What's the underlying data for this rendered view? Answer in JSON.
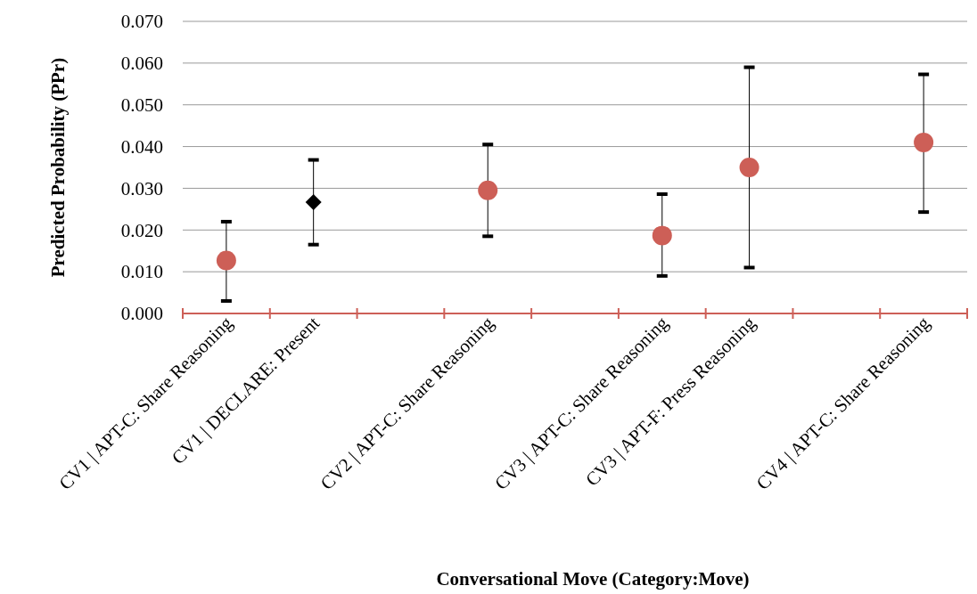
{
  "chart_data": {
    "type": "scatter",
    "xlabel": "Conversational Move (Category:Move)",
    "ylabel": "Predicted Probability (PPr)",
    "categories": [
      "CV1 | APT-C: Share Reasoning",
      "CV1 | DECLARE: Present",
      null,
      "CV2 | APT-C: Share Reasoning",
      null,
      "CV3 | APT-C: Share Reasoning",
      "CV3 | APT-F: Press Reasoning",
      null,
      "CV4 | APT-C: Share Reasoning"
    ],
    "series": [
      {
        "color": "#cd5f57",
        "marker": "circle",
        "values": [
          0.0127,
          null,
          null,
          0.0295,
          null,
          0.0187,
          0.035,
          null,
          0.041
        ],
        "errors": [
          [
            0.003,
            0.022
          ],
          null,
          null,
          [
            0.0185,
            0.0405
          ],
          null,
          [
            0.009,
            0.0286
          ],
          [
            0.011,
            0.059
          ],
          null,
          [
            0.0243,
            0.0573
          ]
        ]
      },
      {
        "color": "#000000",
        "marker": "diamond",
        "values": [
          null,
          0.0267,
          null,
          null,
          null,
          null,
          null,
          null,
          null
        ],
        "errors": [
          null,
          [
            0.0165,
            0.0368
          ],
          null,
          null,
          null,
          null,
          null,
          null,
          null
        ]
      }
    ],
    "ylim": [
      0,
      0.07
    ],
    "yticks": [
      {
        "value": 0,
        "label": "0.000"
      },
      {
        "value": 0.01,
        "label": "0.010"
      },
      {
        "value": 0.02,
        "label": "0.020"
      },
      {
        "value": 0.03,
        "label": "0.030"
      },
      {
        "value": 0.04,
        "label": "0.040"
      },
      {
        "value": 0.05,
        "label": "0.050"
      },
      {
        "value": 0.06,
        "label": "0.060"
      },
      {
        "value": 0.07,
        "label": "0.070"
      }
    ],
    "grid": "y"
  }
}
